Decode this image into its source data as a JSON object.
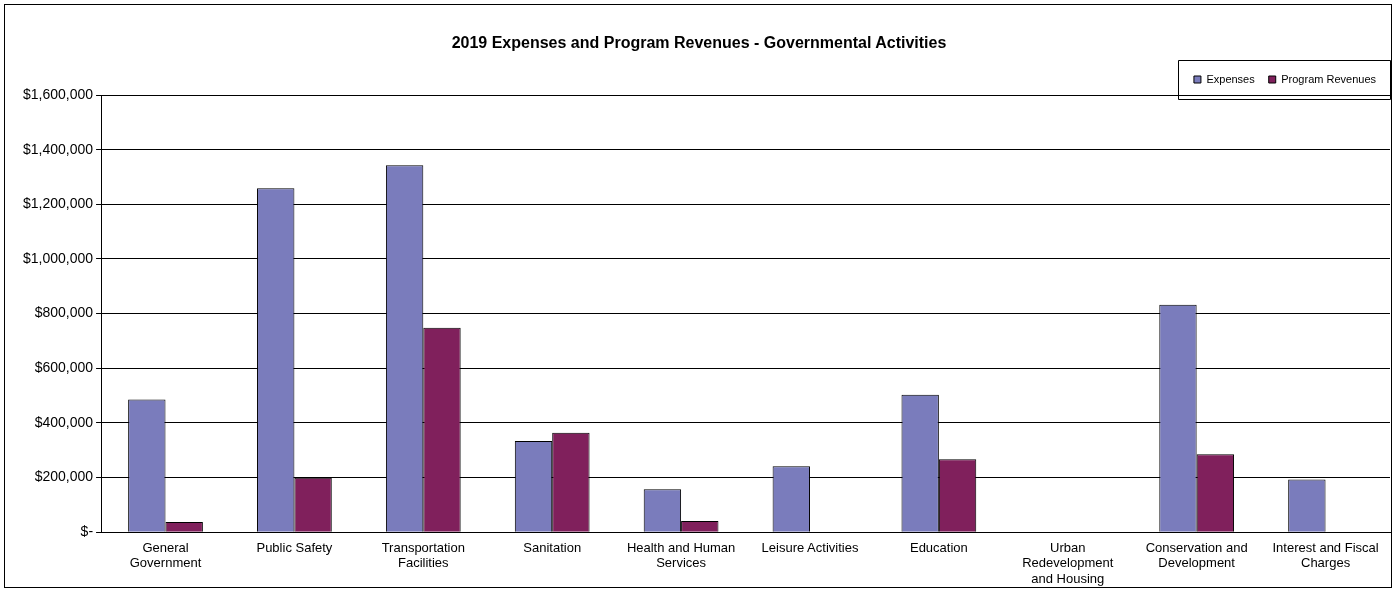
{
  "chart_data": {
    "type": "bar",
    "title": "2019 Expenses and Program Revenues - Governmental Activities",
    "categories": [
      "General Government",
      "Public Safety",
      "Transportation Facilities",
      "Sanitation",
      "Health and Human Services",
      "Leisure Activities",
      "Education",
      "Urban Redevelopment and Housing",
      "Conservation and Development",
      "Interest and Fiscal Charges"
    ],
    "series": [
      {
        "name": "Expenses",
        "color": "#7a7cbc",
        "values": [
          486000,
          1259000,
          1343000,
          334000,
          157000,
          241000,
          503000,
          null,
          832000,
          193000
        ]
      },
      {
        "name": "Program Revenues",
        "color": "#80205c",
        "values": [
          37000,
          199000,
          748000,
          364000,
          41000,
          null,
          267000,
          0,
          285000,
          0
        ]
      }
    ],
    "ylim": [
      0,
      1600000
    ],
    "yticks": [
      {
        "value": 0,
        "label": "$-"
      },
      {
        "value": 200000,
        "label": "$200,000"
      },
      {
        "value": 400000,
        "label": "$400,000"
      },
      {
        "value": 600000,
        "label": "$600,000"
      },
      {
        "value": 800000,
        "label": "$800,000"
      },
      {
        "value": 1000000,
        "label": "$1,000,000"
      },
      {
        "value": 1200000,
        "label": "$1,200,000"
      },
      {
        "value": 1400000,
        "label": "$1,400,000"
      },
      {
        "value": 1600000,
        "label": "$1,600,000"
      }
    ],
    "grid": "y",
    "legend": "top right"
  }
}
